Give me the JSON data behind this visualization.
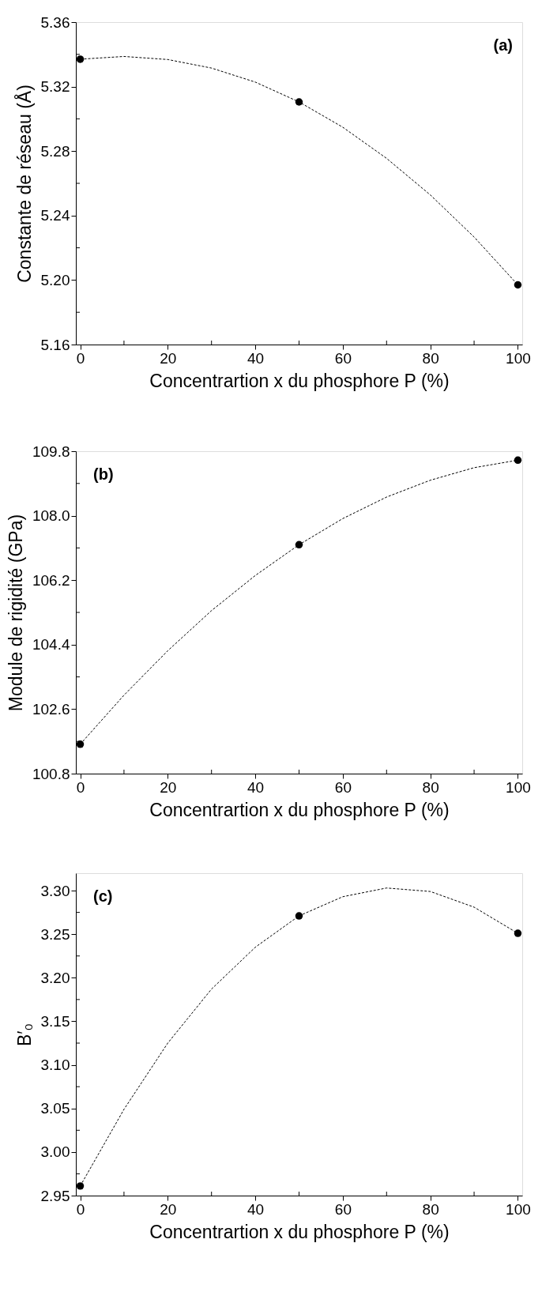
{
  "chart_data": [
    {
      "type": "scatter",
      "ylabel": "Constante de réseau (Å)",
      "xlabel": "Concentrartion x du phosphore P (%)",
      "annotations": [
        "(a)"
      ],
      "grid": false,
      "xlim": [
        -1,
        101
      ],
      "xticks": [
        0,
        {
          "value": 10,
          "label": null
        },
        20,
        {
          "value": 30,
          "label": null
        },
        40,
        {
          "value": 50,
          "label": null
        },
        60,
        {
          "value": 70,
          "label": null
        },
        80,
        {
          "value": 90,
          "label": null
        },
        100
      ],
      "ylim": [
        5.16,
        5.36
      ],
      "yticks": [
        {
          "value": 5.16,
          "label": "5.16"
        },
        {
          "value": 5.18,
          "label": null
        },
        {
          "value": 5.2,
          "label": "5.20"
        },
        {
          "value": 5.22,
          "label": null
        },
        {
          "value": 5.24,
          "label": "5.24"
        },
        {
          "value": 5.26,
          "label": null
        },
        {
          "value": 5.28,
          "label": "5.28"
        },
        {
          "value": 5.3,
          "label": null
        },
        {
          "value": 5.32,
          "label": "5.32"
        },
        {
          "value": 5.34,
          "label": null
        },
        {
          "value": 5.36,
          "label": "5.36"
        }
      ],
      "series": [
        {
          "type": "line",
          "color": "#000000",
          "line_style": "dashed",
          "marker": "none",
          "x": [
            0,
            10,
            20,
            30,
            40,
            50,
            60,
            70,
            80,
            90,
            100
          ],
          "values": [
            5.337,
            5.3387,
            5.3368,
            5.3315,
            5.3228,
            5.3105,
            5.2948,
            5.2755,
            5.2528,
            5.2267,
            5.197
          ]
        },
        {
          "color": "#000000",
          "marker": "circle",
          "x": [
            0,
            50,
            100
          ],
          "values": [
            5.337,
            5.3105,
            5.197
          ]
        }
      ]
    },
    {
      "type": "scatter",
      "ylabel": "Module de rigidité (GPa)",
      "xlabel": "Concentrartion x du phosphore P (%)",
      "annotations": [
        "(b)"
      ],
      "grid": false,
      "xlim": [
        -1,
        101
      ],
      "xticks": [
        0,
        {
          "value": 10,
          "label": null
        },
        20,
        {
          "value": 30,
          "label": null
        },
        40,
        {
          "value": 50,
          "label": null
        },
        60,
        {
          "value": 70,
          "label": null
        },
        80,
        {
          "value": 90,
          "label": null
        },
        100
      ],
      "ylim": [
        100.8,
        109.8
      ],
      "yticks": [
        {
          "value": 100.8,
          "label": "100.8"
        },
        {
          "value": 101.7,
          "label": null
        },
        {
          "value": 102.6,
          "label": "102.6"
        },
        {
          "value": 103.5,
          "label": null
        },
        {
          "value": 104.4,
          "label": "104.4"
        },
        {
          "value": 105.3,
          "label": null
        },
        {
          "value": 106.2,
          "label": "106.2"
        },
        {
          "value": 107.1,
          "label": null
        },
        {
          "value": 108,
          "label": "108.0"
        },
        {
          "value": 108.9,
          "label": null
        },
        {
          "value": 109.8,
          "label": "109.8"
        }
      ],
      "series": [
        {
          "type": "line",
          "color": "#000000",
          "line_style": "dashed",
          "marker": "none",
          "x": [
            0,
            10,
            20,
            30,
            40,
            50,
            60,
            70,
            80,
            90,
            100
          ],
          "values": [
            101.62,
            102.99,
            104.23,
            105.35,
            106.33,
            107.19,
            107.92,
            108.52,
            108.99,
            109.34,
            109.55
          ]
        },
        {
          "color": "#000000",
          "marker": "circle",
          "x": [
            0,
            50,
            100
          ],
          "values": [
            101.62,
            107.19,
            109.55
          ]
        }
      ]
    },
    {
      "type": "scatter",
      "ylabel": "B′₀",
      "xlabel": "Concentrartion x du phosphore P (%)",
      "annotations": [
        "(c)"
      ],
      "grid": false,
      "xlim": [
        -1,
        101
      ],
      "xticks": [
        0,
        {
          "value": 10,
          "label": null
        },
        20,
        {
          "value": 30,
          "label": null
        },
        40,
        {
          "value": 50,
          "label": null
        },
        60,
        {
          "value": 70,
          "label": null
        },
        80,
        {
          "value": 90,
          "label": null
        },
        100
      ],
      "ylim": [
        2.95,
        3.32
      ],
      "yticks": [
        {
          "value": 2.95,
          "label": "2.95"
        },
        {
          "value": 2.975,
          "label": null
        },
        {
          "value": 3.0,
          "label": "3.00"
        },
        {
          "value": 3.025,
          "label": null
        },
        {
          "value": 3.05,
          "label": "3.05"
        },
        {
          "value": 3.075,
          "label": null
        },
        {
          "value": 3.1,
          "label": "3.10"
        },
        {
          "value": 3.125,
          "label": null
        },
        {
          "value": 3.15,
          "label": "3.15"
        },
        {
          "value": 3.175,
          "label": null
        },
        {
          "value": 3.2,
          "label": "3.20"
        },
        {
          "value": 3.225,
          "label": null
        },
        {
          "value": 3.25,
          "label": "3.25"
        },
        {
          "value": 3.275,
          "label": null
        },
        {
          "value": 3.3,
          "label": "3.30"
        }
      ],
      "series": [
        {
          "type": "line",
          "color": "#000000",
          "line_style": "dashed",
          "marker": "none",
          "x": [
            0,
            10,
            20,
            30,
            40,
            50,
            60,
            70,
            80,
            90,
            100
          ],
          "values": [
            2.961,
            3.049,
            3.125,
            3.187,
            3.235,
            3.271,
            3.293,
            3.303,
            3.299,
            3.281,
            3.251
          ]
        },
        {
          "color": "#000000",
          "marker": "circle",
          "x": [
            0,
            50,
            100
          ],
          "values": [
            2.961,
            3.271,
            3.251
          ]
        }
      ]
    }
  ]
}
